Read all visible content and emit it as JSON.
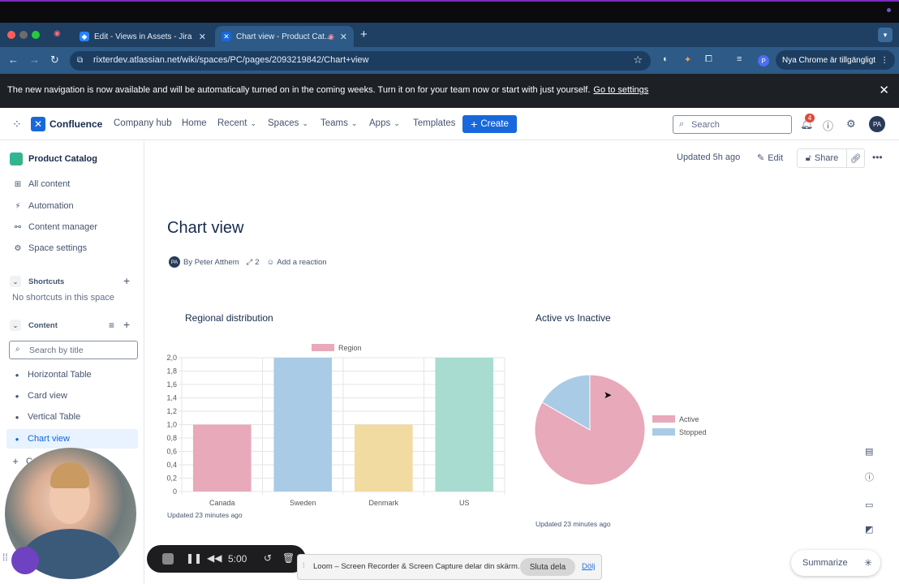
{
  "browser": {
    "tabs": [
      {
        "label": "Edit - Views in Assets - Jira"
      },
      {
        "label": "Chart view - Product Cat..."
      }
    ],
    "url": "rixterdev.atlassian.net/wiki/spaces/PC/pages/2093219842/Chart+view",
    "profile_initial": "P",
    "update_label": "Nya Chrome är tillgängligt"
  },
  "banner": {
    "text": "The new navigation is now available and will be automatically turned on in the coming weeks. Turn it on for your team now or start with just yourself.",
    "link": "Go to settings"
  },
  "nav": {
    "brand": "Confluence",
    "items": [
      "Company hub",
      "Home",
      "Recent",
      "Spaces",
      "Teams",
      "Apps",
      "Templates"
    ],
    "create": "Create",
    "search_placeholder": "Search",
    "notifications_count": "4",
    "avatar": "PA"
  },
  "sidebar": {
    "space_name": "Product Catalog",
    "items": [
      "All content",
      "Automation",
      "Content manager",
      "Space settings"
    ],
    "shortcuts_title": "Shortcuts",
    "shortcuts_empty": "No shortcuts in this space",
    "content_title": "Content",
    "search_placeholder": "Search by title",
    "pages": [
      "Horizontal Table",
      "Card view",
      "Vertical Table",
      "Chart view"
    ],
    "partial_item": "C"
  },
  "page": {
    "updated": "Updated 5h ago",
    "edit": "Edit",
    "share": "Share",
    "title": "Chart view",
    "author_initials": "PA",
    "author": "By Peter Atthem",
    "contributors": "2",
    "reaction": "Add a reaction"
  },
  "chart_data": [
    {
      "type": "bar",
      "title": "Regional distribution",
      "legend": [
        "Region"
      ],
      "categories": [
        "Canada",
        "Sweden",
        "Denmark",
        "US"
      ],
      "series": [
        {
          "name": "Region",
          "values": [
            1,
            2,
            1,
            2
          ]
        }
      ],
      "colors": [
        "#e8a9ba",
        "#a9cbe6",
        "#f2dba0",
        "#a9dcd0"
      ],
      "ylim": [
        0,
        2
      ],
      "yticks": [
        "0",
        "0,2",
        "0,4",
        "0,6",
        "0,8",
        "1,0",
        "1,2",
        "1,4",
        "1,6",
        "1,8",
        "2,0"
      ],
      "grid": true,
      "footer": "Updated 23 minutes ago"
    },
    {
      "type": "pie",
      "title": "Active vs Inactive",
      "labels": [
        "Active",
        "Stopped"
      ],
      "values": [
        5,
        1
      ],
      "colors": [
        "#e8a9ba",
        "#a9cbe6"
      ],
      "legend_position": "right",
      "footer": "Updated 23 minutes ago"
    }
  ],
  "summarize": "Summarize",
  "loom": {
    "timer": "5:00",
    "share_text": "Loom – Screen Recorder & Screen Capture delar din skärm.",
    "stop_label": "Sluta dela",
    "hide_label": "Dölj"
  }
}
